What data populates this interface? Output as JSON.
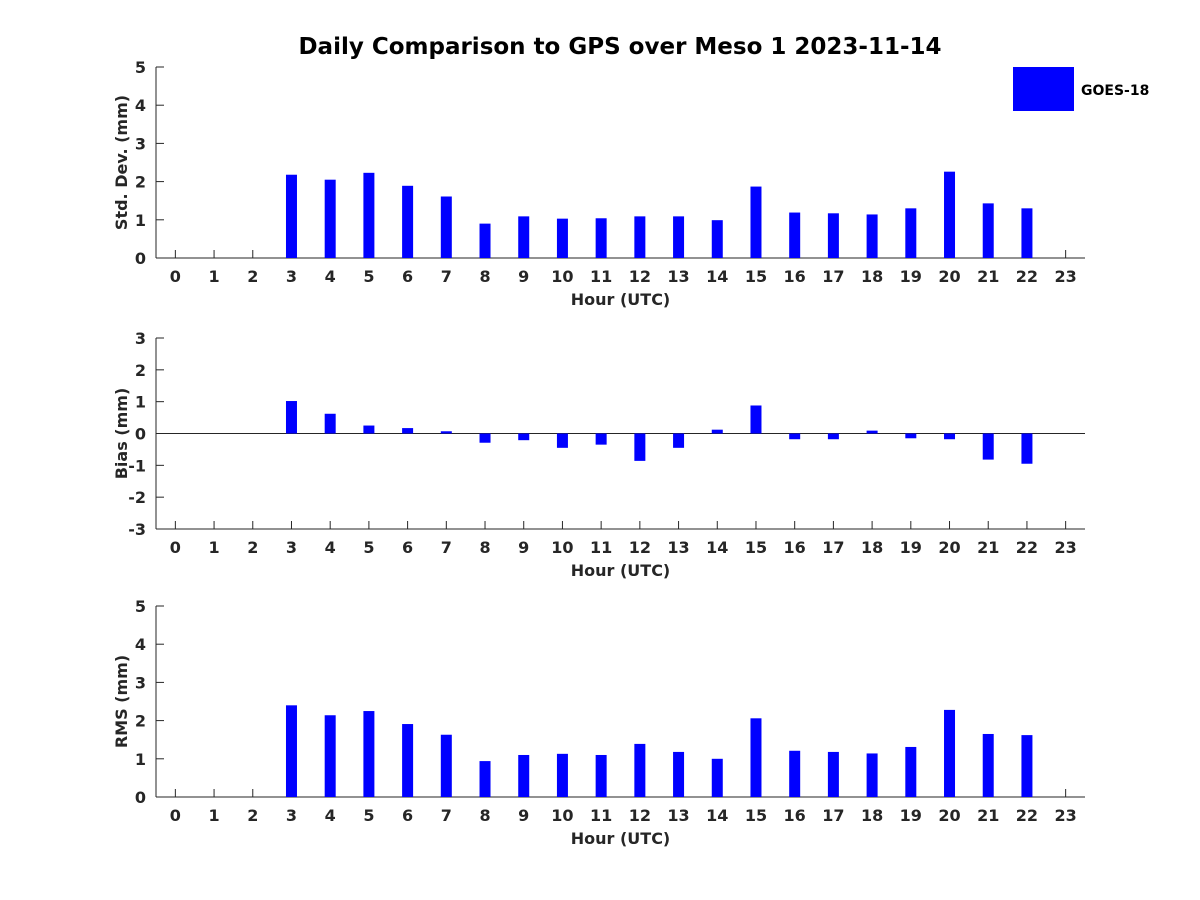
{
  "title": "Daily Comparison to GPS over Meso 1 2023-11-14",
  "legend": {
    "label": "GOES-18",
    "color": "#0000ff"
  },
  "chart_data": [
    {
      "type": "bar",
      "x": [
        0,
        1,
        2,
        3,
        4,
        5,
        6,
        7,
        8,
        9,
        10,
        11,
        12,
        13,
        14,
        15,
        16,
        17,
        18,
        19,
        20,
        21,
        22,
        23
      ],
      "values": [
        null,
        null,
        null,
        2.18,
        2.05,
        2.23,
        1.89,
        1.61,
        0.9,
        1.09,
        1.03,
        1.04,
        1.09,
        1.09,
        0.99,
        1.87,
        1.19,
        1.17,
        1.14,
        1.3,
        2.26,
        1.43,
        1.3,
        null
      ],
      "xlabel": "Hour (UTC)",
      "ylabel": "Std. Dev. (mm)",
      "xlim": [
        -0.5,
        23.5
      ],
      "ylim": [
        0,
        5
      ],
      "yticks": [
        0,
        1,
        2,
        3,
        4,
        5
      ],
      "series": [
        {
          "name": "GOES-18"
        }
      ],
      "legend_position": "top-right"
    },
    {
      "type": "bar",
      "x": [
        0,
        1,
        2,
        3,
        4,
        5,
        6,
        7,
        8,
        9,
        10,
        11,
        12,
        13,
        14,
        15,
        16,
        17,
        18,
        19,
        20,
        21,
        22,
        23
      ],
      "values": [
        null,
        null,
        null,
        1.02,
        0.62,
        0.25,
        0.17,
        0.07,
        -0.29,
        -0.21,
        -0.45,
        -0.35,
        -0.86,
        -0.45,
        0.12,
        0.88,
        -0.18,
        -0.18,
        0.09,
        -0.15,
        -0.18,
        -0.82,
        -0.95,
        null
      ],
      "xlabel": "Hour (UTC)",
      "ylabel": "Bias (mm)",
      "xlim": [
        -0.5,
        23.5
      ],
      "ylim": [
        -3,
        3
      ],
      "yticks": [
        -3,
        -2,
        -1,
        0,
        1,
        2,
        3
      ]
    },
    {
      "type": "bar",
      "x": [
        0,
        1,
        2,
        3,
        4,
        5,
        6,
        7,
        8,
        9,
        10,
        11,
        12,
        13,
        14,
        15,
        16,
        17,
        18,
        19,
        20,
        21,
        22,
        23
      ],
      "values": [
        null,
        null,
        null,
        2.4,
        2.14,
        2.25,
        1.91,
        1.63,
        0.94,
        1.1,
        1.13,
        1.1,
        1.39,
        1.18,
        1.0,
        2.06,
        1.21,
        1.18,
        1.14,
        1.31,
        2.28,
        1.65,
        1.62,
        null
      ],
      "xlabel": "Hour (UTC)",
      "ylabel": "RMS (mm)",
      "xlim": [
        -0.5,
        23.5
      ],
      "ylim": [
        0,
        5
      ],
      "yticks": [
        0,
        1,
        2,
        3,
        4,
        5
      ]
    }
  ]
}
